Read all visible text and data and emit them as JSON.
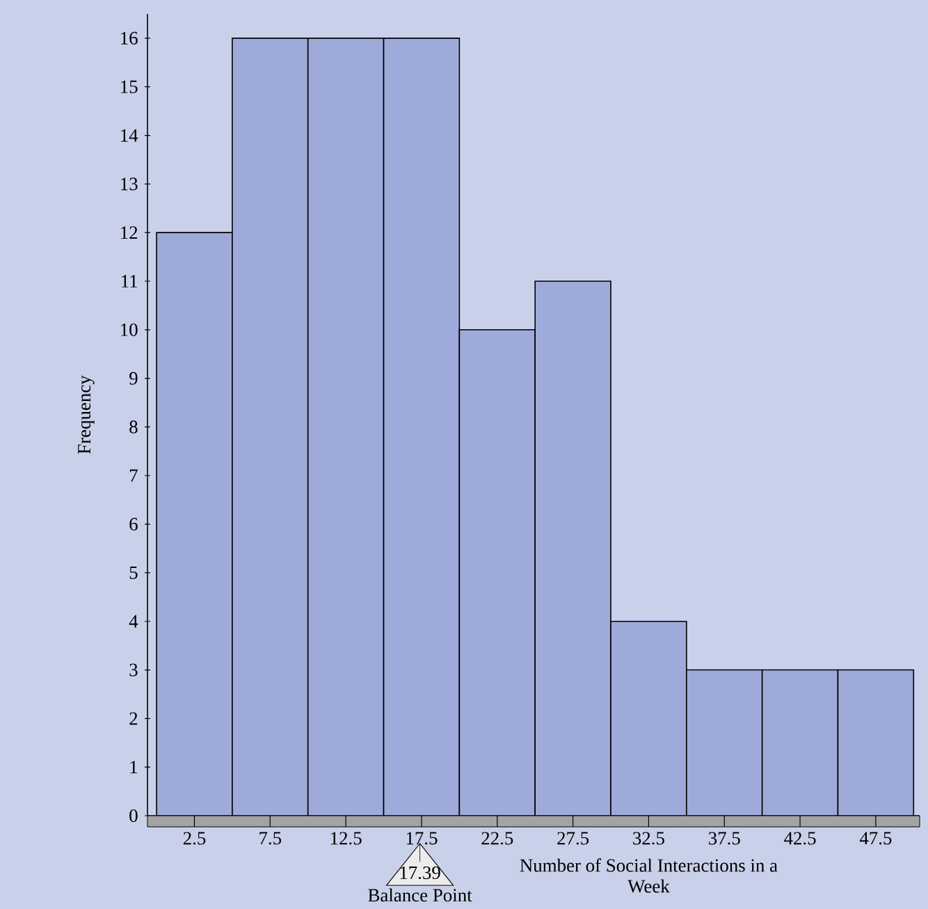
{
  "chart_data": {
    "type": "histogram",
    "xlabel": "Number of Social Interactions in a Week",
    "ylabel": "Frequency",
    "bins": [
      0,
      5,
      10,
      15,
      20,
      25,
      30,
      35,
      40,
      45,
      50
    ],
    "values": [
      12,
      16,
      16,
      16,
      10,
      11,
      4,
      3,
      3,
      3
    ],
    "color": "#9eaad9",
    "xlim": [
      -0.6,
      50.4
    ],
    "ylim": [
      0,
      16.5
    ],
    "xticks": [
      2.5,
      7.5,
      12.5,
      17.5,
      22.5,
      27.5,
      32.5,
      37.5,
      42.5,
      47.5
    ],
    "yticks": [
      0,
      1,
      2,
      3,
      4,
      5,
      6,
      7,
      8,
      9,
      10,
      11,
      12,
      13,
      14,
      15,
      16
    ],
    "annotations": [
      {
        "text": "17.39",
        "x": 17.39,
        "y": 0
      },
      "Balance Point"
    ]
  }
}
